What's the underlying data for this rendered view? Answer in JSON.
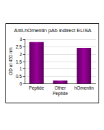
{
  "chart_data": {
    "type": "bar",
    "title": "Anti-hOmentin pAb indirect ELISA",
    "y_label": "OD at 450 nm",
    "categories": [
      "Peptide",
      "Other Peptide",
      "hOmentin"
    ],
    "values": [
      2.8,
      0.2,
      2.4
    ],
    "color": "#990099",
    "ylim": [
      0,
      3
    ],
    "yticks": [
      0,
      0.5,
      1,
      1.5,
      2,
      2.5,
      3
    ],
    "grid": true
  }
}
